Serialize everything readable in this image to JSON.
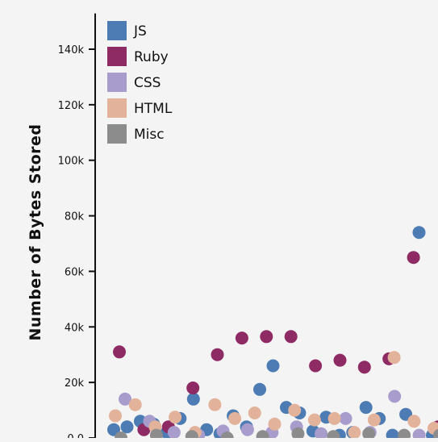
{
  "chart_data": {
    "type": "scatter",
    "ylabel": "Number of Bytes Stored",
    "xlabel": "",
    "ylim": [
      0,
      150000
    ],
    "yticks": [
      0,
      20000,
      40000,
      60000,
      80000,
      100000,
      120000,
      140000
    ],
    "ytick_labels": [
      "0.0",
      "20k",
      "40k",
      "60k",
      "80k",
      "100k",
      "120k",
      "140k"
    ],
    "legend_position": "top-left",
    "series": [
      {
        "name": "JS",
        "color": "#4c7cb3",
        "points": [
          [
            1,
            3000
          ],
          [
            2,
            4000
          ],
          [
            3,
            6000
          ],
          [
            4,
            5000
          ],
          [
            5,
            2000
          ],
          [
            6,
            7000
          ],
          [
            7,
            14000
          ],
          [
            8,
            3000
          ],
          [
            9,
            1500
          ],
          [
            10,
            8000
          ],
          [
            11,
            4000
          ],
          [
            12,
            17500
          ],
          [
            13,
            26000
          ],
          [
            14,
            11000
          ],
          [
            15,
            9000
          ],
          [
            16,
            2500
          ],
          [
            17,
            7500
          ],
          [
            18,
            1000
          ],
          [
            19,
            2000
          ],
          [
            20,
            11000
          ],
          [
            21,
            7000
          ],
          [
            22,
            1000
          ],
          [
            23,
            8500
          ],
          [
            24,
            74000
          ],
          [
            25,
            1000
          ]
        ]
      },
      {
        "name": "Ruby",
        "color": "#8e2a64",
        "points": [
          [
            1,
            31000
          ],
          [
            2,
            3000
          ],
          [
            3,
            4000
          ],
          [
            4,
            18000
          ],
          [
            5,
            30000
          ],
          [
            6,
            36000
          ],
          [
            7,
            36500
          ],
          [
            8,
            36500
          ],
          [
            9,
            26000
          ],
          [
            10,
            28000
          ],
          [
            11,
            25500
          ],
          [
            12,
            28500
          ],
          [
            13,
            65000
          ],
          [
            14,
            4000
          ]
        ]
      },
      {
        "name": "CSS",
        "color": "#a89ccd",
        "points": [
          [
            1,
            14000
          ],
          [
            2,
            6000
          ],
          [
            3,
            2000
          ],
          [
            4,
            1000
          ],
          [
            5,
            2500
          ],
          [
            6,
            3000
          ],
          [
            7,
            2000
          ],
          [
            8,
            4000
          ],
          [
            9,
            1500
          ],
          [
            10,
            7000
          ],
          [
            11,
            2000
          ],
          [
            12,
            15000
          ],
          [
            13,
            1000
          ],
          [
            14,
            2000
          ]
        ]
      },
      {
        "name": "HTML",
        "color": "#e2b29a",
        "points": [
          [
            1,
            8000
          ],
          [
            2,
            12000
          ],
          [
            3,
            4000
          ],
          [
            4,
            7500
          ],
          [
            5,
            2000
          ],
          [
            6,
            12000
          ],
          [
            7,
            7000
          ],
          [
            8,
            9000
          ],
          [
            9,
            5000
          ],
          [
            10,
            10000
          ],
          [
            11,
            6500
          ],
          [
            12,
            7000
          ],
          [
            13,
            2000
          ],
          [
            14,
            6500
          ],
          [
            15,
            29000
          ],
          [
            16,
            6000
          ],
          [
            17,
            3500
          ]
        ]
      },
      {
        "name": "Misc",
        "color": "#8c8c8c",
        "points": [
          [
            1,
            0
          ],
          [
            2,
            1000
          ],
          [
            3,
            500
          ],
          [
            4,
            0
          ],
          [
            5,
            500
          ],
          [
            6,
            1500
          ],
          [
            7,
            500
          ],
          [
            8,
            1500
          ],
          [
            9,
            1000
          ],
          [
            10,
            1000
          ]
        ]
      }
    ]
  }
}
